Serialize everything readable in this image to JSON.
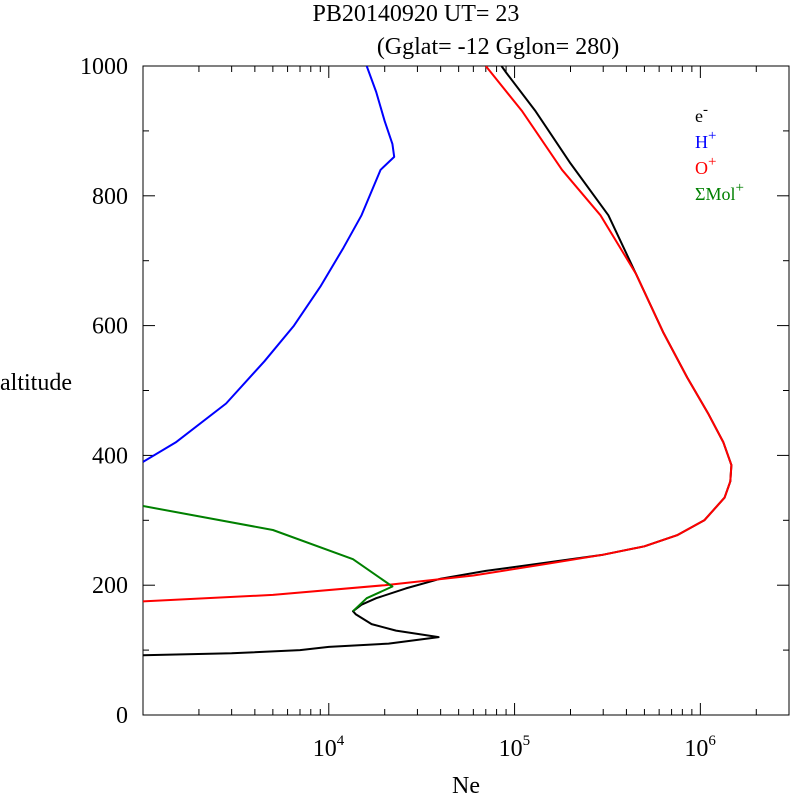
{
  "title": {
    "line1": "PB20140920   UT=  23",
    "line2": "(Gglat= -12   Gglon=  280)"
  },
  "chart_data": {
    "type": "line",
    "xlabel": "Ne",
    "ylabel": "altitude",
    "xscale": "log",
    "xlim": [
      1000,
      3000000
    ],
    "ylim": [
      0,
      1000
    ],
    "yticks": [
      "0",
      "200",
      "400",
      "600",
      "800",
      "1000"
    ],
    "xticks": [
      {
        "base": "10",
        "exp": "4",
        "value": 10000
      },
      {
        "base": "10",
        "exp": "5",
        "value": 100000
      },
      {
        "base": "10",
        "exp": "6",
        "value": 1000000
      }
    ],
    "legend_position": "top-right",
    "series": [
      {
        "key": "e",
        "name": "e",
        "sup": "-",
        "color": "#000000",
        "points": [
          [
            1000,
            92
          ],
          [
            3000,
            95
          ],
          [
            7000,
            100
          ],
          [
            10000,
            105
          ],
          [
            21000,
            110
          ],
          [
            39000,
            120
          ],
          [
            23000,
            130
          ],
          [
            17000,
            140
          ],
          [
            14000,
            155
          ],
          [
            13500,
            160
          ],
          [
            15000,
            170
          ],
          [
            18000,
            180
          ],
          [
            26000,
            195
          ],
          [
            40000,
            210
          ],
          [
            70000,
            222
          ],
          [
            150000,
            235
          ],
          [
            300000,
            247
          ],
          [
            500000,
            260
          ],
          [
            750000,
            277
          ],
          [
            1050000,
            300
          ],
          [
            1350000,
            335
          ],
          [
            1450000,
            360
          ],
          [
            1470000,
            385
          ],
          [
            1330000,
            420
          ],
          [
            1100000,
            465
          ],
          [
            850000,
            520
          ],
          [
            630000,
            590
          ],
          [
            450000,
            680
          ],
          [
            320000,
            770
          ],
          [
            200000,
            850
          ],
          [
            130000,
            930
          ],
          [
            90000,
            990
          ],
          [
            85000,
            1000
          ]
        ]
      },
      {
        "key": "h",
        "name": "H",
        "sup": "+",
        "color": "#0000ff",
        "points": [
          [
            1000,
            390
          ],
          [
            1500,
            420
          ],
          [
            2800,
            480
          ],
          [
            4500,
            545
          ],
          [
            6500,
            600
          ],
          [
            9000,
            660
          ],
          [
            12000,
            720
          ],
          [
            15000,
            770
          ],
          [
            19000,
            840
          ],
          [
            22500,
            860
          ],
          [
            22000,
            880
          ],
          [
            20000,
            915
          ],
          [
            18000,
            960
          ],
          [
            16000,
            1000
          ]
        ]
      },
      {
        "key": "o",
        "name": "O",
        "sup": "+",
        "color": "#ff0000",
        "points": [
          [
            1000,
            175
          ],
          [
            5000,
            185
          ],
          [
            20000,
            200
          ],
          [
            60000,
            215
          ],
          [
            150000,
            233
          ],
          [
            300000,
            247
          ],
          [
            500000,
            260
          ],
          [
            750000,
            277
          ],
          [
            1050000,
            300
          ],
          [
            1350000,
            335
          ],
          [
            1450000,
            360
          ],
          [
            1470000,
            385
          ],
          [
            1330000,
            420
          ],
          [
            1100000,
            465
          ],
          [
            850000,
            520
          ],
          [
            630000,
            590
          ],
          [
            450000,
            680
          ],
          [
            290000,
            770
          ],
          [
            180000,
            840
          ],
          [
            110000,
            930
          ],
          [
            70000,
            1000
          ]
        ]
      },
      {
        "key": "mol",
        "name": "ΣMol",
        "sup": "+",
        "color": "#008000",
        "points": [
          [
            1000,
            322
          ],
          [
            5000,
            285
          ],
          [
            13500,
            240
          ],
          [
            22000,
            198
          ],
          [
            16000,
            180
          ],
          [
            13500,
            160
          ]
        ]
      }
    ]
  }
}
